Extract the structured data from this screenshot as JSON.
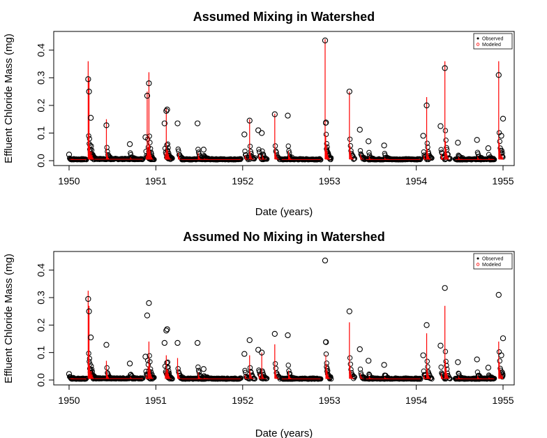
{
  "chart_data": [
    {
      "type": "scatter",
      "title": "Assumed Mixing in Watershed",
      "xlabel": "Date (years)",
      "ylabel": "Effluent Chloride Mass (mg)",
      "xlim": [
        1950,
        1955
      ],
      "ylim": [
        0,
        0.45
      ],
      "xticks": [
        "1950",
        "1951",
        "1952",
        "1953",
        "1954",
        "1955"
      ],
      "yticks": [
        "0.0",
        "0.1",
        "0.2",
        "0.3",
        "0.4"
      ],
      "grid": false,
      "legend_position": "top-right",
      "series": [
        {
          "name": "Observed",
          "style": "open-circle",
          "color": "#000000",
          "points": [
            [
              1950.0,
              0.022
            ],
            [
              1950.22,
              0.295
            ],
            [
              1950.23,
              0.25
            ],
            [
              1950.25,
              0.155
            ],
            [
              1950.43,
              0.128
            ],
            [
              1950.7,
              0.06
            ],
            [
              1950.88,
              0.085
            ],
            [
              1950.9,
              0.235
            ],
            [
              1950.92,
              0.28
            ],
            [
              1951.1,
              0.135
            ],
            [
              1951.12,
              0.18
            ],
            [
              1951.13,
              0.185
            ],
            [
              1951.25,
              0.135
            ],
            [
              1951.48,
              0.135
            ],
            [
              1951.55,
              0.04
            ],
            [
              1952.02,
              0.095
            ],
            [
              1952.08,
              0.145
            ],
            [
              1952.18,
              0.11
            ],
            [
              1952.22,
              0.1
            ],
            [
              1952.37,
              0.168
            ],
            [
              1952.52,
              0.163
            ],
            [
              1952.95,
              0.435
            ],
            [
              1952.96,
              0.138
            ],
            [
              1953.23,
              0.25
            ],
            [
              1953.35,
              0.112
            ],
            [
              1953.45,
              0.07
            ],
            [
              1953.63,
              0.055
            ],
            [
              1954.08,
              0.09
            ],
            [
              1954.12,
              0.2
            ],
            [
              1954.28,
              0.125
            ],
            [
              1954.33,
              0.335
            ],
            [
              1954.48,
              0.065
            ],
            [
              1954.7,
              0.075
            ],
            [
              1954.83,
              0.045
            ],
            [
              1954.95,
              0.31
            ],
            [
              1954.98,
              0.09
            ],
            [
              1955.0,
              0.152
            ]
          ],
          "baseline_segments": [
            [
              1950.02,
              1950.2,
              0.003
            ],
            [
              1950.3,
              1950.85,
              0.004
            ],
            [
              1951.3,
              1951.98,
              0.003
            ],
            [
              1952.45,
              1952.9,
              0.003
            ],
            [
              1953.42,
              1954.05,
              0.003
            ],
            [
              1954.45,
              1954.9,
              0.003
            ]
          ]
        },
        {
          "name": "Modeled",
          "style": "vertical-lines",
          "color": "#ff0000",
          "spikes": [
            [
              1950.22,
              0.36
            ],
            [
              1950.23,
              0.3
            ],
            [
              1950.43,
              0.15
            ],
            [
              1950.9,
              0.25
            ],
            [
              1950.92,
              0.32
            ],
            [
              1951.12,
              0.19
            ],
            [
              1952.08,
              0.15
            ],
            [
              1952.37,
              0.17
            ],
            [
              1952.95,
              0.44
            ],
            [
              1953.23,
              0.25
            ],
            [
              1954.12,
              0.23
            ],
            [
              1954.33,
              0.36
            ],
            [
              1954.95,
              0.36
            ]
          ]
        }
      ]
    },
    {
      "type": "scatter",
      "title": "Assumed No Mixing in Watershed",
      "xlabel": "Date (years)",
      "ylabel": "Effluent Chloride Mass (mg)",
      "xlim": [
        1950,
        1955
      ],
      "ylim": [
        0,
        0.45
      ],
      "xticks": [
        "1950",
        "1951",
        "1952",
        "1953",
        "1954",
        "1955"
      ],
      "yticks": [
        "0.0",
        "0.1",
        "0.2",
        "0.3",
        "0.4"
      ],
      "grid": false,
      "legend_position": "top-right",
      "series": [
        {
          "name": "Observed",
          "style": "open-circle",
          "color": "#000000",
          "points": [
            [
              1950.0,
              0.022
            ],
            [
              1950.22,
              0.295
            ],
            [
              1950.23,
              0.25
            ],
            [
              1950.25,
              0.155
            ],
            [
              1950.43,
              0.128
            ],
            [
              1950.7,
              0.06
            ],
            [
              1950.88,
              0.085
            ],
            [
              1950.9,
              0.235
            ],
            [
              1950.92,
              0.28
            ],
            [
              1951.1,
              0.135
            ],
            [
              1951.12,
              0.18
            ],
            [
              1951.13,
              0.185
            ],
            [
              1951.25,
              0.135
            ],
            [
              1951.48,
              0.135
            ],
            [
              1951.55,
              0.04
            ],
            [
              1952.02,
              0.095
            ],
            [
              1952.08,
              0.145
            ],
            [
              1952.18,
              0.11
            ],
            [
              1952.22,
              0.1
            ],
            [
              1952.37,
              0.168
            ],
            [
              1952.52,
              0.163
            ],
            [
              1952.95,
              0.435
            ],
            [
              1952.96,
              0.138
            ],
            [
              1953.23,
              0.25
            ],
            [
              1953.35,
              0.112
            ],
            [
              1953.45,
              0.07
            ],
            [
              1953.63,
              0.055
            ],
            [
              1954.08,
              0.09
            ],
            [
              1954.12,
              0.2
            ],
            [
              1954.28,
              0.125
            ],
            [
              1954.33,
              0.335
            ],
            [
              1954.48,
              0.065
            ],
            [
              1954.7,
              0.075
            ],
            [
              1954.83,
              0.045
            ],
            [
              1954.95,
              0.31
            ],
            [
              1954.98,
              0.09
            ],
            [
              1955.0,
              0.152
            ]
          ],
          "baseline_segments": [
            [
              1950.02,
              1950.2,
              0.003
            ],
            [
              1950.3,
              1950.85,
              0.004
            ],
            [
              1951.3,
              1951.98,
              0.003
            ],
            [
              1952.45,
              1952.9,
              0.003
            ],
            [
              1953.42,
              1954.05,
              0.003
            ],
            [
              1954.45,
              1954.9,
              0.003
            ]
          ]
        },
        {
          "name": "Modeled",
          "style": "vertical-lines",
          "color": "#ff0000",
          "spikes": [
            [
              1950.22,
              0.325
            ],
            [
              1950.23,
              0.27
            ],
            [
              1950.43,
              0.07
            ],
            [
              1950.92,
              0.14
            ],
            [
              1951.12,
              0.09
            ],
            [
              1951.25,
              0.08
            ],
            [
              1952.08,
              0.09
            ],
            [
              1952.22,
              0.1
            ],
            [
              1952.37,
              0.13
            ],
            [
              1953.23,
              0.21
            ],
            [
              1954.12,
              0.17
            ],
            [
              1954.33,
              0.27
            ],
            [
              1954.95,
              0.14
            ]
          ]
        }
      ]
    }
  ]
}
